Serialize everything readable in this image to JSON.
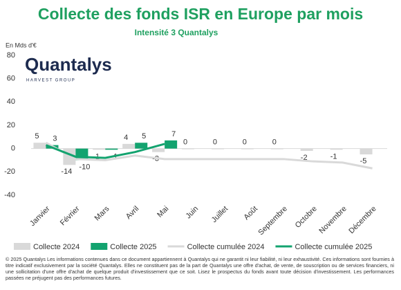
{
  "chart_data": {
    "type": "bar",
    "title": "Collecte des fonds ISR en Europe par mois",
    "subtitle": "Intensité 3 Quantalys",
    "y_label": "En Mds d'€",
    "logo": "Quantalys",
    "logo_sub": "HARVEST GROUP",
    "categories": [
      "Janvier",
      "Février",
      "Mars",
      "Avril",
      "Mai",
      "Juin",
      "Juillet",
      "Août",
      "Septembre",
      "Octobre",
      "Novembre",
      "Décembre"
    ],
    "series": [
      {
        "name": "Collecte 2024",
        "type": "bar",
        "color": "#d9d9d9",
        "values": [
          5,
          -14,
          -1,
          4,
          -3,
          0,
          0,
          0,
          0,
          -2,
          -1,
          -5
        ]
      },
      {
        "name": "Collecte 2025",
        "type": "bar",
        "color": "#13a36f",
        "values": [
          3,
          -10,
          -1,
          5,
          7,
          null,
          null,
          null,
          null,
          null,
          null,
          null
        ]
      },
      {
        "name": "Collecte cumulée 2024",
        "type": "line",
        "color": "#d9d9d9",
        "values": [
          5,
          -9,
          -10,
          -6,
          -9,
          -9,
          -9,
          -9,
          -9,
          -11,
          -12,
          -17
        ]
      },
      {
        "name": "Collecte cumulée 2025",
        "type": "line",
        "color": "#13a36f",
        "values": [
          3,
          -7,
          -8,
          -3,
          4,
          null,
          null,
          null,
          null,
          null,
          null,
          null
        ]
      }
    ],
    "ylim": [
      -40,
      80
    ],
    "yticks": [
      -40,
      -20,
      0,
      20,
      40,
      60,
      80
    ],
    "footer": "© 2025 Quantalys Les informations contenues dans ce document appartiennent à Quantalys qui ne garantit ni leur fiabilité, ni leur exhaustivité. Ces informations sont fournies à titre indicatif exclusivement par la société Quantalys. Elles ne constituent pas de la part de Quantalys une offre d'achat, de vente, de souscription ou de services financiers, ni une sollicitation d'une offre d'achat de quelque produit d'investissement que ce soit. Lisez le prospectus du fonds avant toute décision d'investissement. Les performances passées ne préjugent pas des performances futures."
  }
}
